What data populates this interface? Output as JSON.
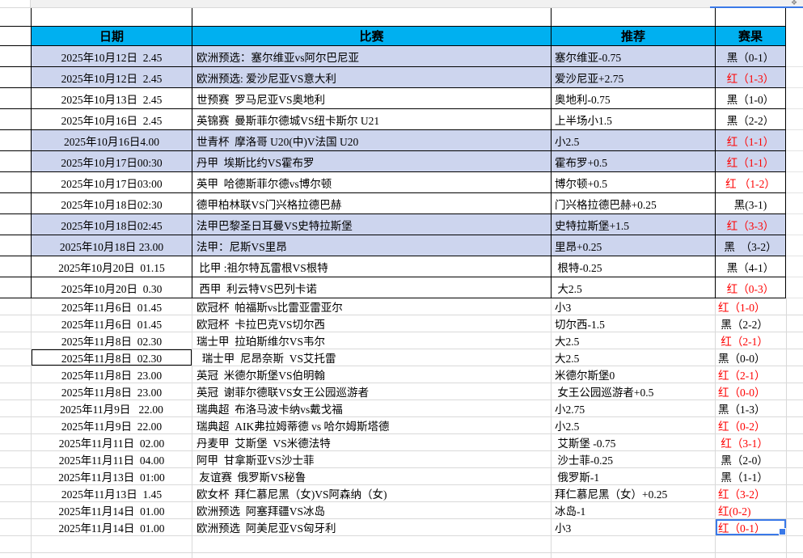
{
  "sheet": {
    "headers": [
      "日期",
      "比赛",
      "推荐",
      "赛果"
    ],
    "colors": {
      "header_fill": "#00b0f0",
      "alt_row_fill": "#cdd5ee",
      "result_red": "#fe0000",
      "selection_blue": "#3a79e8"
    },
    "icons": {
      "corner_widget": "❖"
    },
    "rows": [
      {
        "date": "2025年10月12日  2.45",
        "match": "欧洲预选：塞尔维亚vs阿尔巴尼亚",
        "rec": "塞尔维亚-0.75",
        "result": "黑（0-1）",
        "result_color": "black",
        "fill": true,
        "section": "bordered"
      },
      {
        "date": "2025年10月12日  2.45",
        "match": "欧洲预选: 爱沙尼亚VS意大利",
        "rec": "爱沙尼亚+2.75",
        "result": "红（1-3）",
        "result_color": "red",
        "fill": true,
        "section": "bordered"
      },
      {
        "date": "2025年10月13日  2.45",
        "match": "世预赛  罗马尼亚VS奥地利",
        "rec": "奥地利-0.75",
        "result": "黑（1-0）",
        "result_color": "black",
        "fill": false,
        "section": "bordered"
      },
      {
        "date": "2025年10月16日  2.45",
        "match": "英锦赛  曼斯菲尔德城VS纽卡斯尔 U21",
        "rec": "上半场小1.5",
        "result": "黑（2-2）",
        "result_color": "black",
        "fill": false,
        "section": "bordered"
      },
      {
        "date": "2025年10月16日4.00",
        "match": "世青杯  摩洛哥 U20(中)V法国 U20",
        "rec": "小2.5",
        "result": "红（1-1）",
        "result_color": "red",
        "fill": true,
        "section": "bordered"
      },
      {
        "date": "2025年10月17日00:30",
        "match": "丹甲  埃斯比约VS霍布罗",
        "rec": "霍布罗+0.5",
        "result": "红（1-1）",
        "result_color": "red",
        "fill": true,
        "section": "bordered"
      },
      {
        "date": "2025年10月17日03:00",
        "match": "英甲  哈德斯菲尔德vs博尔顿",
        "rec": "博尔顿+0.5",
        "result": "红 （1-2）",
        "result_color": "red",
        "fill": false,
        "section": "bordered"
      },
      {
        "date": "2025年10月18日02:30",
        "match": "德甲柏林联VS门兴格拉德巴赫",
        "rec": "门兴格拉德巴赫+0.25",
        "result": "黑(3-1)",
        "result_color": "black",
        "fill": false,
        "section": "bordered"
      },
      {
        "date": "2025年10月18日02:45",
        "match": "法甲巴黎圣日耳曼VS史特拉斯堡",
        "rec": "史特拉斯堡+1.5",
        "result": "红（3-3）",
        "result_color": "red",
        "fill": true,
        "section": "bordered"
      },
      {
        "date": "2025年10月18日 23.00",
        "match": "法甲：尼斯VS里昂",
        "rec": "里昂+0.25",
        "result": "黑　（3-2）",
        "result_color": "black",
        "fill": true,
        "section": "bordered"
      },
      {
        "date": "2025年10月20日  01.15",
        "match": " 比甲 :祖尔特瓦雷根VS根特",
        "rec": " 根特-0.25",
        "result": "黑（4-1）",
        "result_color": "black",
        "fill": false,
        "section": "bordered"
      },
      {
        "date": "2025年10月20日  0.30",
        "match": " 西甲  利云特VS巴列卡诺",
        "rec": " 大2.5",
        "result": "红（0-3）",
        "result_color": "red",
        "fill": false,
        "section": "bordered"
      },
      {
        "date": "2025年11月6日  01.45",
        "match": "欧冠杯  帕福斯vs比雷亚雷亚尔",
        "rec": "小3",
        "result": "红（1-0）",
        "result_color": "red",
        "fill": false,
        "section": "plain"
      },
      {
        "date": "2025年11月6日  01.45",
        "match": "欧冠杯  卡拉巴克VS切尔西",
        "rec": "切尔西-1.5",
        "result": " 黑（2-2）",
        "result_color": "black",
        "fill": false,
        "section": "plain"
      },
      {
        "date": "2025年11月8日  02.30",
        "match": "瑞士甲  拉珀斯维尔VS韦尔",
        "rec": "大2.5",
        "result": " 红（2-1）",
        "result_color": "red",
        "fill": false,
        "section": "plain"
      },
      {
        "date": "2025年11月8日  02.30",
        "match": "  瑞士甲  尼昂奈斯  VS艾托雷",
        "rec": "大2.5",
        "result": "黑（0-0）",
        "result_color": "black",
        "fill": false,
        "section": "plain",
        "boxed_date": true
      },
      {
        "date": "2025年11月8日  23.00",
        "match": "英冠  米德尔斯堡VS伯明翰",
        "rec": "米德尔斯堡0",
        "result": "红（2-1）",
        "result_color": "red",
        "fill": false,
        "section": "plain"
      },
      {
        "date": "2025年11月8日  23.00",
        "match": "英冠  谢菲尔德联VS女王公园巡游者",
        "rec": " 女王公园巡游者+0.5",
        "result": "红（0-0）",
        "result_color": "red",
        "fill": false,
        "section": "plain"
      },
      {
        "date": "2025年11月9日   22.00",
        "match": "瑞典超  布洛马波卡纳vs戴戈福",
        "rec": "小2.75",
        "result": "黑（1-3）",
        "result_color": "black",
        "fill": false,
        "section": "plain"
      },
      {
        "date": "2025年11月9日  22.00",
        "match": "瑞典超  AIK弗拉姆蒂德 vs 哈尔姆斯塔德",
        "rec": "小2.5",
        "result": "红（0-2）",
        "result_color": "red",
        "fill": false,
        "section": "plain"
      },
      {
        "date": "2025年11月11日  02.00",
        "match": "丹麦甲  艾斯堡  VS米德法特",
        "rec": " 艾斯堡 -0.75",
        "result": " 红（3-1）",
        "result_color": "red",
        "fill": false,
        "section": "plain"
      },
      {
        "date": "2025年11月11日  04.00",
        "match": "阿甲  甘拿斯亚VS沙士菲",
        "rec": " 沙士菲-0.25",
        "result": " 黑（2-0）",
        "result_color": "black",
        "fill": false,
        "section": "plain"
      },
      {
        "date": "2025年11月13日  01:00",
        "match": " 友谊赛  俄罗斯VS秘鲁",
        "rec": " 俄罗斯-1",
        "result": " 黑（1-1）",
        "result_color": "black",
        "fill": false,
        "section": "plain"
      },
      {
        "date": "2025年11月13日  1.45",
        "match": "欧女杯  拜仁慕尼黑（女)VS阿森纳（女)",
        "rec": "拜仁慕尼黑（女）+0.25",
        "result": "红（3-2）",
        "result_color": "red",
        "fill": false,
        "section": "plain"
      },
      {
        "date": "2025年11月14日  01.00",
        "match": "欧洲预选  阿塞拜疆VS冰岛",
        "rec": "冰岛-1",
        "result": "红(0-2)",
        "result_color": "red",
        "fill": false,
        "section": "plain"
      },
      {
        "date": "2025年11月14日  01.00",
        "match": "欧洲预选  阿美尼亚VS匈牙利",
        "rec": "小3",
        "result": "红（0-1）",
        "result_color": "red",
        "fill": false,
        "section": "plain",
        "selected_result": true
      }
    ]
  }
}
